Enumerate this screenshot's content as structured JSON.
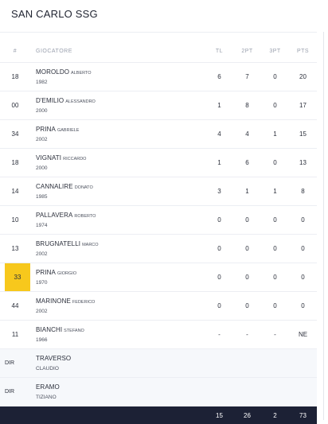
{
  "team": {
    "name": "SAN CARLO SSG"
  },
  "columns": {
    "num": "#",
    "player": "Giocatore",
    "tl": "TL",
    "pt2": "2PT",
    "pt3": "3PT",
    "pts": "PTS"
  },
  "players": [
    {
      "num": "18",
      "last": "MOROLDO",
      "first": "ALBERTO",
      "year": "1982",
      "tl": "6",
      "pt2": "7",
      "pt3": "0",
      "pts": "20",
      "highlight": false
    },
    {
      "num": "00",
      "last": "D'EMILIO",
      "first": "ALESSANDRO",
      "year": "2000",
      "tl": "1",
      "pt2": "8",
      "pt3": "0",
      "pts": "17",
      "highlight": false
    },
    {
      "num": "34",
      "last": "PRINA",
      "first": "GABRIELE",
      "year": "2002",
      "tl": "4",
      "pt2": "4",
      "pt3": "1",
      "pts": "15",
      "highlight": false
    },
    {
      "num": "18",
      "last": "VIGNATI",
      "first": "RICCARDO",
      "year": "2000",
      "tl": "1",
      "pt2": "6",
      "pt3": "0",
      "pts": "13",
      "highlight": false
    },
    {
      "num": "14",
      "last": "CANNALIRE",
      "first": "DONATO",
      "year": "1985",
      "tl": "3",
      "pt2": "1",
      "pt3": "1",
      "pts": "8",
      "highlight": false
    },
    {
      "num": "10",
      "last": "PALLAVERA",
      "first": "ROBERTO",
      "year": "1974",
      "tl": "0",
      "pt2": "0",
      "pt3": "0",
      "pts": "0",
      "highlight": false
    },
    {
      "num": "13",
      "last": "BRUGNATELLI",
      "first": "MARCO",
      "year": "2002",
      "tl": "0",
      "pt2": "0",
      "pt3": "0",
      "pts": "0",
      "highlight": false
    },
    {
      "num": "33",
      "last": "PRINA",
      "first": "GIORGIO",
      "year": "1970",
      "tl": "0",
      "pt2": "0",
      "pt3": "0",
      "pts": "0",
      "highlight": true
    },
    {
      "num": "44",
      "last": "MARINONE",
      "first": "FEDERICO",
      "year": "2002",
      "tl": "0",
      "pt2": "0",
      "pt3": "0",
      "pts": "0",
      "highlight": false
    },
    {
      "num": "11",
      "last": "BIANCHI",
      "first": "STEFANO",
      "year": "1966",
      "tl": "-",
      "pt2": "-",
      "pt3": "-",
      "pts": "NE",
      "highlight": false
    }
  ],
  "staff": [
    {
      "role": "DIR",
      "last": "TRAVERSO",
      "first": "CLAUDIO"
    },
    {
      "role": "DIR",
      "last": "ERAMO",
      "first": "TIZIANO"
    }
  ],
  "totals": {
    "tl": "15",
    "pt2": "26",
    "pt3": "2",
    "pts": "73"
  },
  "colors": {
    "highlight": "#f7c81c",
    "totals_bg": "#1c2135",
    "staff_bg": "#f6f8fb"
  }
}
